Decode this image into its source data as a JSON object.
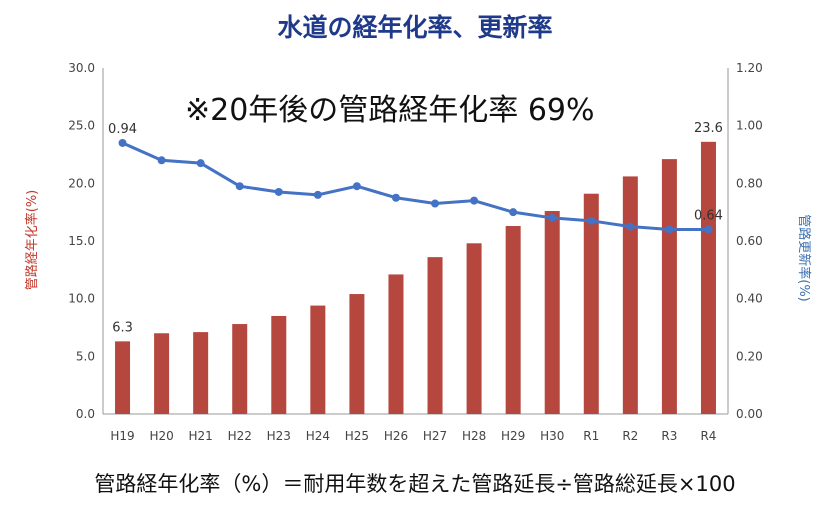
{
  "chart_data": {
    "type": "bar+line",
    "title": "水道の経年化率、更新率",
    "annotation": "※20年後の管路経年化率 69%",
    "formula": "管路経年化率（%）＝耐用年数を超えた管路延長÷管路総延長×100",
    "categories": [
      "H19",
      "H20",
      "H21",
      "H22",
      "H23",
      "H24",
      "H25",
      "H26",
      "H27",
      "H28",
      "H29",
      "H30",
      "R1",
      "R2",
      "R3",
      "R4"
    ],
    "series": [
      {
        "name": "管路経年化率(%)",
        "type": "bar",
        "axis": "left",
        "color": "#b5473f",
        "values": [
          6.3,
          7.0,
          7.1,
          7.8,
          8.5,
          9.4,
          10.4,
          12.1,
          13.6,
          14.8,
          16.3,
          17.6,
          19.1,
          20.6,
          22.1,
          23.6
        ]
      },
      {
        "name": "管路更新率(%)",
        "type": "line",
        "axis": "right",
        "color": "#4472c4",
        "values": [
          0.94,
          0.88,
          0.87,
          0.79,
          0.77,
          0.76,
          0.79,
          0.75,
          0.73,
          0.74,
          0.7,
          0.68,
          0.67,
          0.65,
          0.64,
          0.64
        ]
      }
    ],
    "left_axis": {
      "label": "管路経年化率(%)",
      "min": 0,
      "max": 30,
      "ticks": [
        "0.0",
        "5.0",
        "10.0",
        "15.0",
        "20.0",
        "25.0",
        "30.0"
      ]
    },
    "right_axis": {
      "label": "管路更新率(%)",
      "min": 0,
      "max": 1.2,
      "ticks": [
        "0.00",
        "0.20",
        "0.40",
        "0.60",
        "0.80",
        "1.00",
        "1.20"
      ]
    },
    "data_labels": [
      {
        "series": 0,
        "index": 0,
        "text": "6.3"
      },
      {
        "series": 0,
        "index": 15,
        "text": "23.6"
      },
      {
        "series": 1,
        "index": 0,
        "text": "0.94"
      },
      {
        "series": 1,
        "index": 15,
        "text": "0.64"
      }
    ]
  }
}
